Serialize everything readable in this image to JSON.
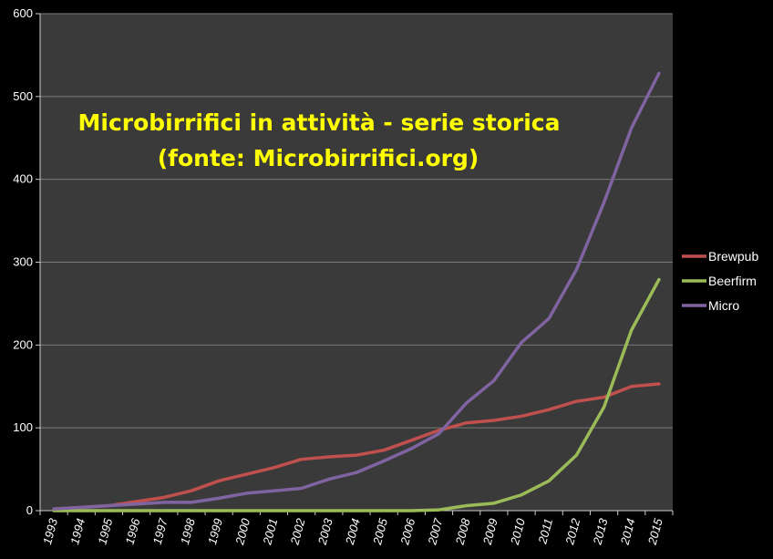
{
  "chart_data": {
    "type": "line",
    "title": "Microbirrifici in attività - serie storica",
    "subtitle": "(fonte: Microbirrifici.org)",
    "xlabel": "",
    "ylabel": "",
    "ylim": [
      0,
      600
    ],
    "yticks": [
      0,
      100,
      200,
      300,
      400,
      500,
      600
    ],
    "grid": true,
    "legend": "right",
    "categories": [
      "1993",
      "1994",
      "1995",
      "1996",
      "1997",
      "1998",
      "1999",
      "2000",
      "2001",
      "2002",
      "2003",
      "2004",
      "2005",
      "2006",
      "2007",
      "2008",
      "2009",
      "2010",
      "2011",
      "2012",
      "2013",
      "2014",
      "2015"
    ],
    "series": [
      {
        "name": "Brewpub",
        "color": "#c0504d",
        "values": [
          2,
          4,
          6,
          11,
          16,
          24,
          36,
          44,
          52,
          62,
          65,
          67,
          73,
          85,
          97,
          106,
          109,
          114,
          122,
          132,
          137,
          150,
          153
        ]
      },
      {
        "name": "Beerfirm",
        "color": "#9bbb59",
        "values": [
          0,
          0,
          0,
          0,
          0,
          0,
          0,
          0,
          0,
          0,
          0,
          0,
          0,
          0,
          1,
          6,
          9,
          19,
          36,
          67,
          125,
          218,
          279
        ]
      },
      {
        "name": "Micro",
        "color": "#8064a2",
        "values": [
          2,
          4,
          6,
          8,
          10,
          10,
          15,
          21,
          24,
          27,
          38,
          46,
          60,
          75,
          93,
          130,
          157,
          203,
          232,
          291,
          372,
          462,
          528
        ]
      }
    ],
    "colors": {
      "background": "#000000",
      "plot_area": "#3a3a3a",
      "grid": "#7a7a7a",
      "title": "#ffff00"
    }
  }
}
